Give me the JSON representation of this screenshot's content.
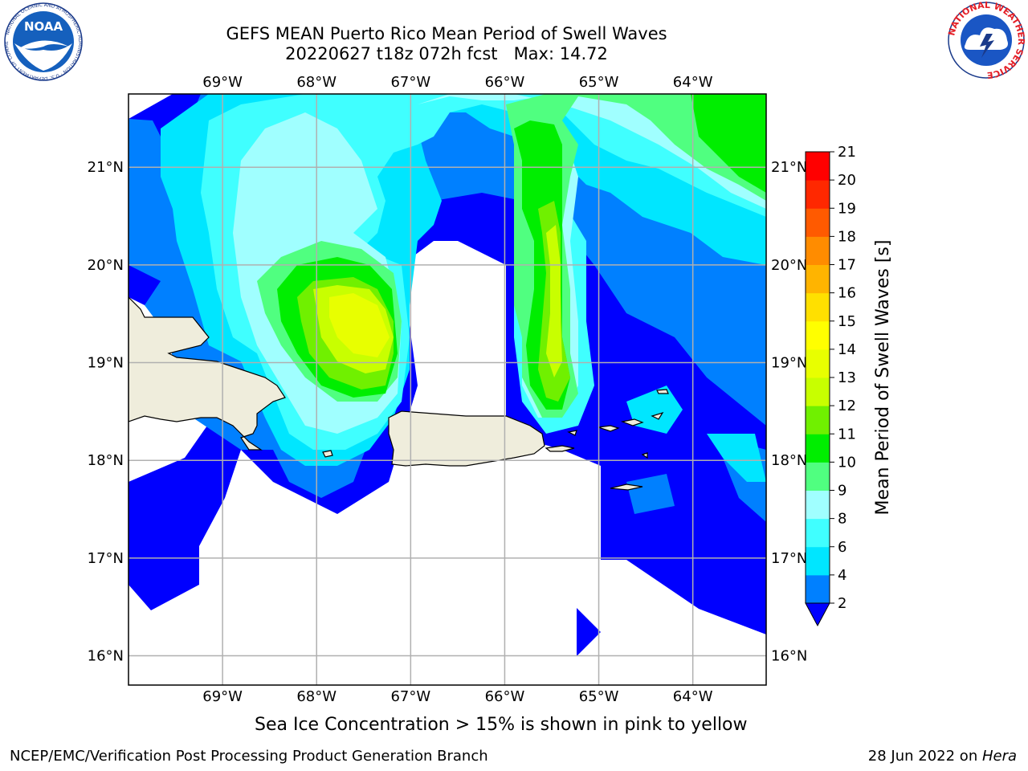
{
  "header": {
    "title_line1": "GEFS MEAN Puerto Rico Mean Period of Swell Waves",
    "title_line2": "20220627 t18z 072h fcst   Max: 14.72"
  },
  "logos": {
    "left": {
      "name": "noaa-logo",
      "text": "NOAA",
      "ring_text": "NATIONAL OCEANIC AND ATMOSPHERIC ADMINISTRATION · U.S. DEPARTMENT OF COMMERCE"
    },
    "right": {
      "name": "nws-logo",
      "ring_text": "NATIONAL WEATHER SERVICE"
    }
  },
  "map": {
    "lon_ticks": [
      "69°W",
      "68°W",
      "67°W",
      "66°W",
      "65°W",
      "64°W"
    ],
    "lat_ticks": [
      "21°N",
      "20°N",
      "19°N",
      "18°N",
      "17°N",
      "16°N"
    ],
    "lon_values": [
      -69,
      -68,
      -67,
      -66,
      -65,
      -64
    ],
    "lat_values": [
      21,
      20,
      19,
      18,
      17,
      16
    ],
    "extent": {
      "lon_min": -70.0,
      "lon_max": -63.22,
      "lat_min": 15.7,
      "lat_max": 21.75
    },
    "land_color": "#efeddc"
  },
  "colorbar": {
    "label": "Mean Period of Swell Waves [s]",
    "ticks": [
      "21",
      "20",
      "19",
      "18",
      "17",
      "16",
      "15",
      "14",
      "13",
      "12",
      "11",
      "10",
      "9",
      "8",
      "6",
      "4",
      "2"
    ],
    "levels": [
      2,
      4,
      6,
      8,
      9,
      10,
      11,
      12,
      13,
      14,
      15,
      16,
      17,
      18,
      19,
      20,
      21
    ],
    "colors": [
      "#0080ff",
      "#00e6ff",
      "#40ffff",
      "#a0ffff",
      "#50ff80",
      "#00ee00",
      "#70f000",
      "#c8ff00",
      "#e8ff00",
      "#ffff00",
      "#ffe000",
      "#ffb400",
      "#ff8c00",
      "#ff5a00",
      "#ff2800",
      "#ff0000"
    ],
    "under_color": "#0000ff"
  },
  "footer": {
    "note": "Sea Ice Concentration > 15% is shown in pink to yellow",
    "left": "NCEP/EMC/Verification Post Processing Product Generation Branch",
    "right_date": "28 Jun 2022 on ",
    "right_host": "Hera"
  }
}
